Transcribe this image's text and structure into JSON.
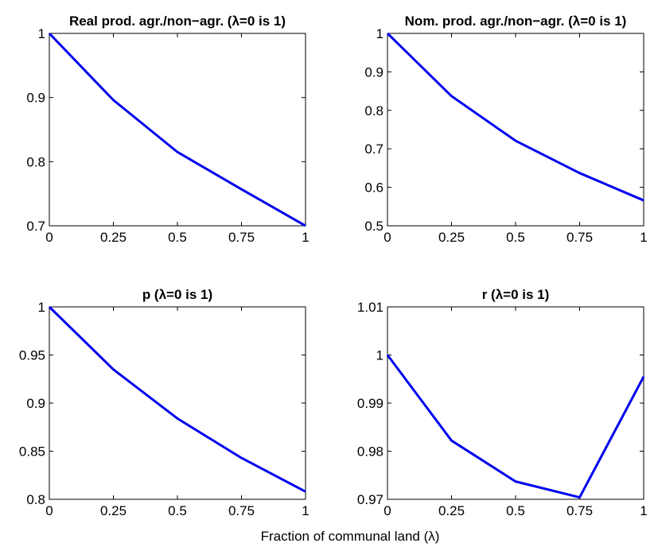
{
  "figure": {
    "xlabel": "Fraction of communal land (λ)"
  },
  "chart_data": [
    {
      "type": "line",
      "title": "Real prod. agr./non−agr. (λ=0 is 1)",
      "x": [
        0,
        0.25,
        0.5,
        0.75,
        1
      ],
      "series": [
        {
          "values": [
            1.0,
            0.896,
            0.815,
            0.757,
            0.7
          ],
          "color": "#0000ee"
        }
      ],
      "xlim": [
        0,
        1
      ],
      "ylim": [
        0.7,
        1.0
      ],
      "xticks": [
        "0",
        "0.25",
        "0.5",
        "0.75",
        "1"
      ],
      "yticks": [
        0.7,
        0.8,
        0.9,
        1.0
      ],
      "yticklabels": [
        "0.7",
        "0.8",
        "0.9",
        "1"
      ],
      "grid": false
    },
    {
      "type": "line",
      "title": "Nom. prod. agr./non−agr. (λ=0 is 1)",
      "x": [
        0,
        0.25,
        0.5,
        0.75,
        1
      ],
      "series": [
        {
          "values": [
            1.0,
            0.837,
            0.721,
            0.637,
            0.566
          ],
          "color": "#0000ee"
        }
      ],
      "xlim": [
        0,
        1
      ],
      "ylim": [
        0.5,
        1.0
      ],
      "xticks": [
        "0",
        "0.25",
        "0.5",
        "0.75",
        "1"
      ],
      "yticks": [
        0.5,
        0.6,
        0.7,
        0.8,
        0.9,
        1.0
      ],
      "yticklabels": [
        "0.5",
        "0.6",
        "0.7",
        "0.8",
        "0.9",
        "1"
      ],
      "grid": false
    },
    {
      "type": "line",
      "title": "p (λ=0 is 1)",
      "x": [
        0,
        0.25,
        0.5,
        0.75,
        1
      ],
      "series": [
        {
          "values": [
            1.0,
            0.935,
            0.884,
            0.843,
            0.808
          ],
          "color": "#0000ee"
        }
      ],
      "xlim": [
        0,
        1
      ],
      "ylim": [
        0.8,
        1.0
      ],
      "xticks": [
        "0",
        "0.25",
        "0.5",
        "0.75",
        "1"
      ],
      "yticks": [
        0.8,
        0.85,
        0.9,
        0.95,
        1.0
      ],
      "yticklabels": [
        "0.8",
        "0.85",
        "0.9",
        "0.95",
        "1"
      ],
      "grid": false
    },
    {
      "type": "line",
      "title": "r (λ=0 is 1)",
      "x": [
        0,
        0.25,
        0.5,
        0.75,
        1
      ],
      "series": [
        {
          "values": [
            1.0,
            0.9822,
            0.9737,
            0.9704,
            0.9955
          ],
          "color": "#0000ee"
        }
      ],
      "xlim": [
        0,
        1
      ],
      "ylim": [
        0.97,
        1.01
      ],
      "xticks": [
        "0",
        "0.25",
        "0.5",
        "0.75",
        "1"
      ],
      "yticks": [
        0.97,
        0.98,
        0.99,
        1.0,
        1.01
      ],
      "yticklabels": [
        "0.97",
        "0.98",
        "0.99",
        "1",
        "1.01"
      ],
      "grid": false
    }
  ]
}
